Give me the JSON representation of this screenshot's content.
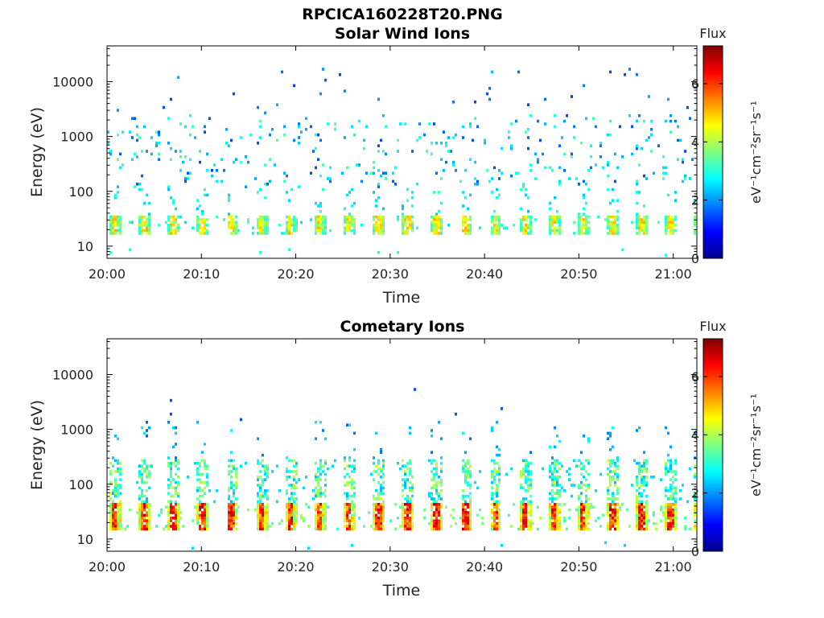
{
  "figure": {
    "title": "RPCICA160228T20.PNG"
  },
  "colorbar": {
    "title": "Flux",
    "label": "eV⁻¹cm⁻²sr⁻¹s⁻¹",
    "ticks": [
      "0",
      "2",
      "4",
      "6"
    ],
    "range": [
      0,
      7.3
    ],
    "colormap": "jet"
  },
  "chart_data": [
    {
      "type": "heatmap",
      "title": "Solar Wind Ions",
      "xlabel": "Time",
      "ylabel": "Energy (eV)",
      "x_tick_labels": [
        "20:00",
        "20:10",
        "20:20",
        "20:30",
        "20:40",
        "20:50",
        "21:00"
      ],
      "y_tick_labels": [
        "10",
        "100",
        "1000",
        "10000"
      ],
      "y_scale": "log",
      "ylim": [
        6,
        45000
      ],
      "xlim_minutes": [
        0,
        62.5
      ],
      "value_range": [
        0,
        7.3
      ],
      "description_bands": [
        {
          "energy": [
            17,
            35
          ],
          "flux": [
            3.5,
            5.2
          ],
          "period_min": 3.1
        },
        {
          "energy": [
            100,
            2000
          ],
          "flux": [
            1.5,
            3.5
          ],
          "sparse": true
        },
        {
          "energy": [
            2000,
            15000
          ],
          "flux": [
            1.2,
            2.3
          ],
          "sparse": true
        }
      ]
    },
    {
      "type": "heatmap",
      "title": "Cometary Ions",
      "xlabel": "Time",
      "ylabel": "Energy (eV)",
      "x_tick_labels": [
        "20:00",
        "20:10",
        "20:20",
        "20:30",
        "20:40",
        "20:50",
        "21:00"
      ],
      "y_tick_labels": [
        "10",
        "100",
        "1000",
        "10000"
      ],
      "y_scale": "log",
      "ylim": [
        6,
        45000
      ],
      "xlim_minutes": [
        0,
        62.5
      ],
      "value_range": [
        0,
        7.3
      ],
      "description_bands": [
        {
          "energy": [
            15,
            45
          ],
          "flux": [
            4.5,
            6.8
          ],
          "period_min": 3.1
        },
        {
          "energy": [
            45,
            600
          ],
          "flux": [
            2.0,
            4.0
          ],
          "period_min": 3.1
        },
        {
          "energy": [
            600,
            5000
          ],
          "flux": [
            1.5,
            2.5
          ],
          "sparse": true
        }
      ]
    }
  ]
}
